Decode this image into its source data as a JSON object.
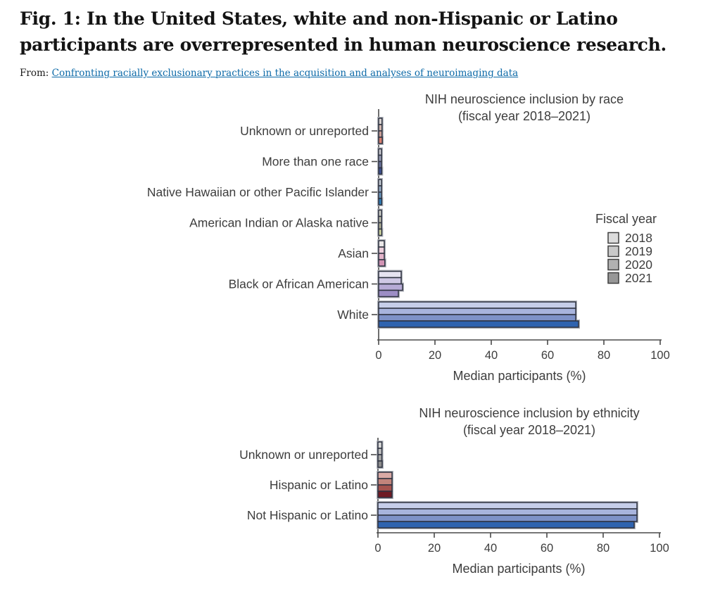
{
  "figure": {
    "title": "Fig. 1: In the United States, white and non-Hispanic or Latino participants are overrepresented in human neuroscience research.",
    "source_prefix": "From:",
    "source_link_text": "Confronting racially exclusionary practices in the acquisition and analyses of neuroimaging data"
  },
  "colors": {
    "link": "#0d6aa8",
    "axis": "#4a4a4a",
    "chart_text": "#3d3d3d",
    "bar_outline": "#2e3340",
    "bar_halo": "#b0b3ba"
  },
  "legend": {
    "title": "Fiscal year",
    "entries": [
      {
        "label": "2018",
        "color": "#dcdcdc"
      },
      {
        "label": "2019",
        "color": "#c9c9c9"
      },
      {
        "label": "2020",
        "color": "#b1b1b1"
      },
      {
        "label": "2021",
        "color": "#979797"
      }
    ]
  },
  "chart_data": [
    {
      "type": "bar",
      "orientation": "horizontal",
      "title": "NIH neuroscience inclusion by race",
      "subtitle": "(fiscal year 2018–2021)",
      "xlabel": "Median participants (%)",
      "xlim": [
        0,
        100
      ],
      "xticks": [
        0,
        20,
        40,
        60,
        80,
        100
      ],
      "grid": false,
      "legend_position": "right",
      "categories": [
        "Unknown or unreported",
        "More than one race",
        "Native Hawaiian or other Pacific Islander",
        "American Indian or Alaska native",
        "Asian",
        "Black or African American",
        "White"
      ],
      "series": [
        {
          "name": "2018",
          "values": [
            1.2,
            1.0,
            1.0,
            1.0,
            2.0,
            8.0,
            70.0
          ]
        },
        {
          "name": "2019",
          "values": [
            1.2,
            1.0,
            1.0,
            1.0,
            2.0,
            8.0,
            70.0
          ]
        },
        {
          "name": "2020",
          "values": [
            1.2,
            1.0,
            1.0,
            1.0,
            2.0,
            8.5,
            70.0
          ]
        },
        {
          "name": "2021",
          "values": [
            1.3,
            1.1,
            1.1,
            1.1,
            2.2,
            7.0,
            71.0
          ]
        }
      ],
      "category_colors": [
        [
          "#d8d2d0",
          "#d0b6b0",
          "#c79d95",
          "#d77f70"
        ],
        [
          "#d4d4da",
          "#a0a5bf",
          "#6e77a3",
          "#3e5090"
        ],
        [
          "#ccd3db",
          "#a0b6d0",
          "#6f9dc5",
          "#2e7cb6"
        ],
        [
          "#d9d9d1",
          "#c9c9b6",
          "#b9b89c",
          "#ced49e"
        ],
        [
          "#eae7e7",
          "#eccfdb",
          "#e2b3c9",
          "#d194b4"
        ],
        [
          "#e6e3f0",
          "#cfc8e4",
          "#b7abd6",
          "#9c8dc4"
        ],
        [
          "#c6cee9",
          "#a8b4dd",
          "#7e92c8",
          "#2f63af"
        ]
      ]
    },
    {
      "type": "bar",
      "orientation": "horizontal",
      "title": "NIH neuroscience inclusion by ethnicity",
      "subtitle": "(fiscal year 2018–2021)",
      "xlabel": "Median participants (%)",
      "xlim": [
        0,
        100
      ],
      "xticks": [
        0,
        20,
        40,
        60,
        80,
        100
      ],
      "grid": false,
      "categories": [
        "Unknown or unreported",
        "Hispanic or Latino",
        "Not Hispanic or Latino"
      ],
      "series": [
        {
          "name": "2018",
          "values": [
            1.4,
            5.0,
            92.0
          ]
        },
        {
          "name": "2019",
          "values": [
            1.4,
            5.0,
            92.0
          ]
        },
        {
          "name": "2020",
          "values": [
            1.4,
            5.0,
            92.0
          ]
        },
        {
          "name": "2021",
          "values": [
            1.5,
            5.0,
            91.0
          ]
        }
      ],
      "category_colors": [
        [
          "#d8d8d8",
          "#bfbfbf",
          "#a6a6a6",
          "#8c8c8c"
        ],
        [
          "#d9aaa5",
          "#c2847b",
          "#a5534e",
          "#6f1b24"
        ],
        [
          "#c6cee9",
          "#a8b4dd",
          "#7e92c8",
          "#2f63af"
        ]
      ]
    }
  ]
}
